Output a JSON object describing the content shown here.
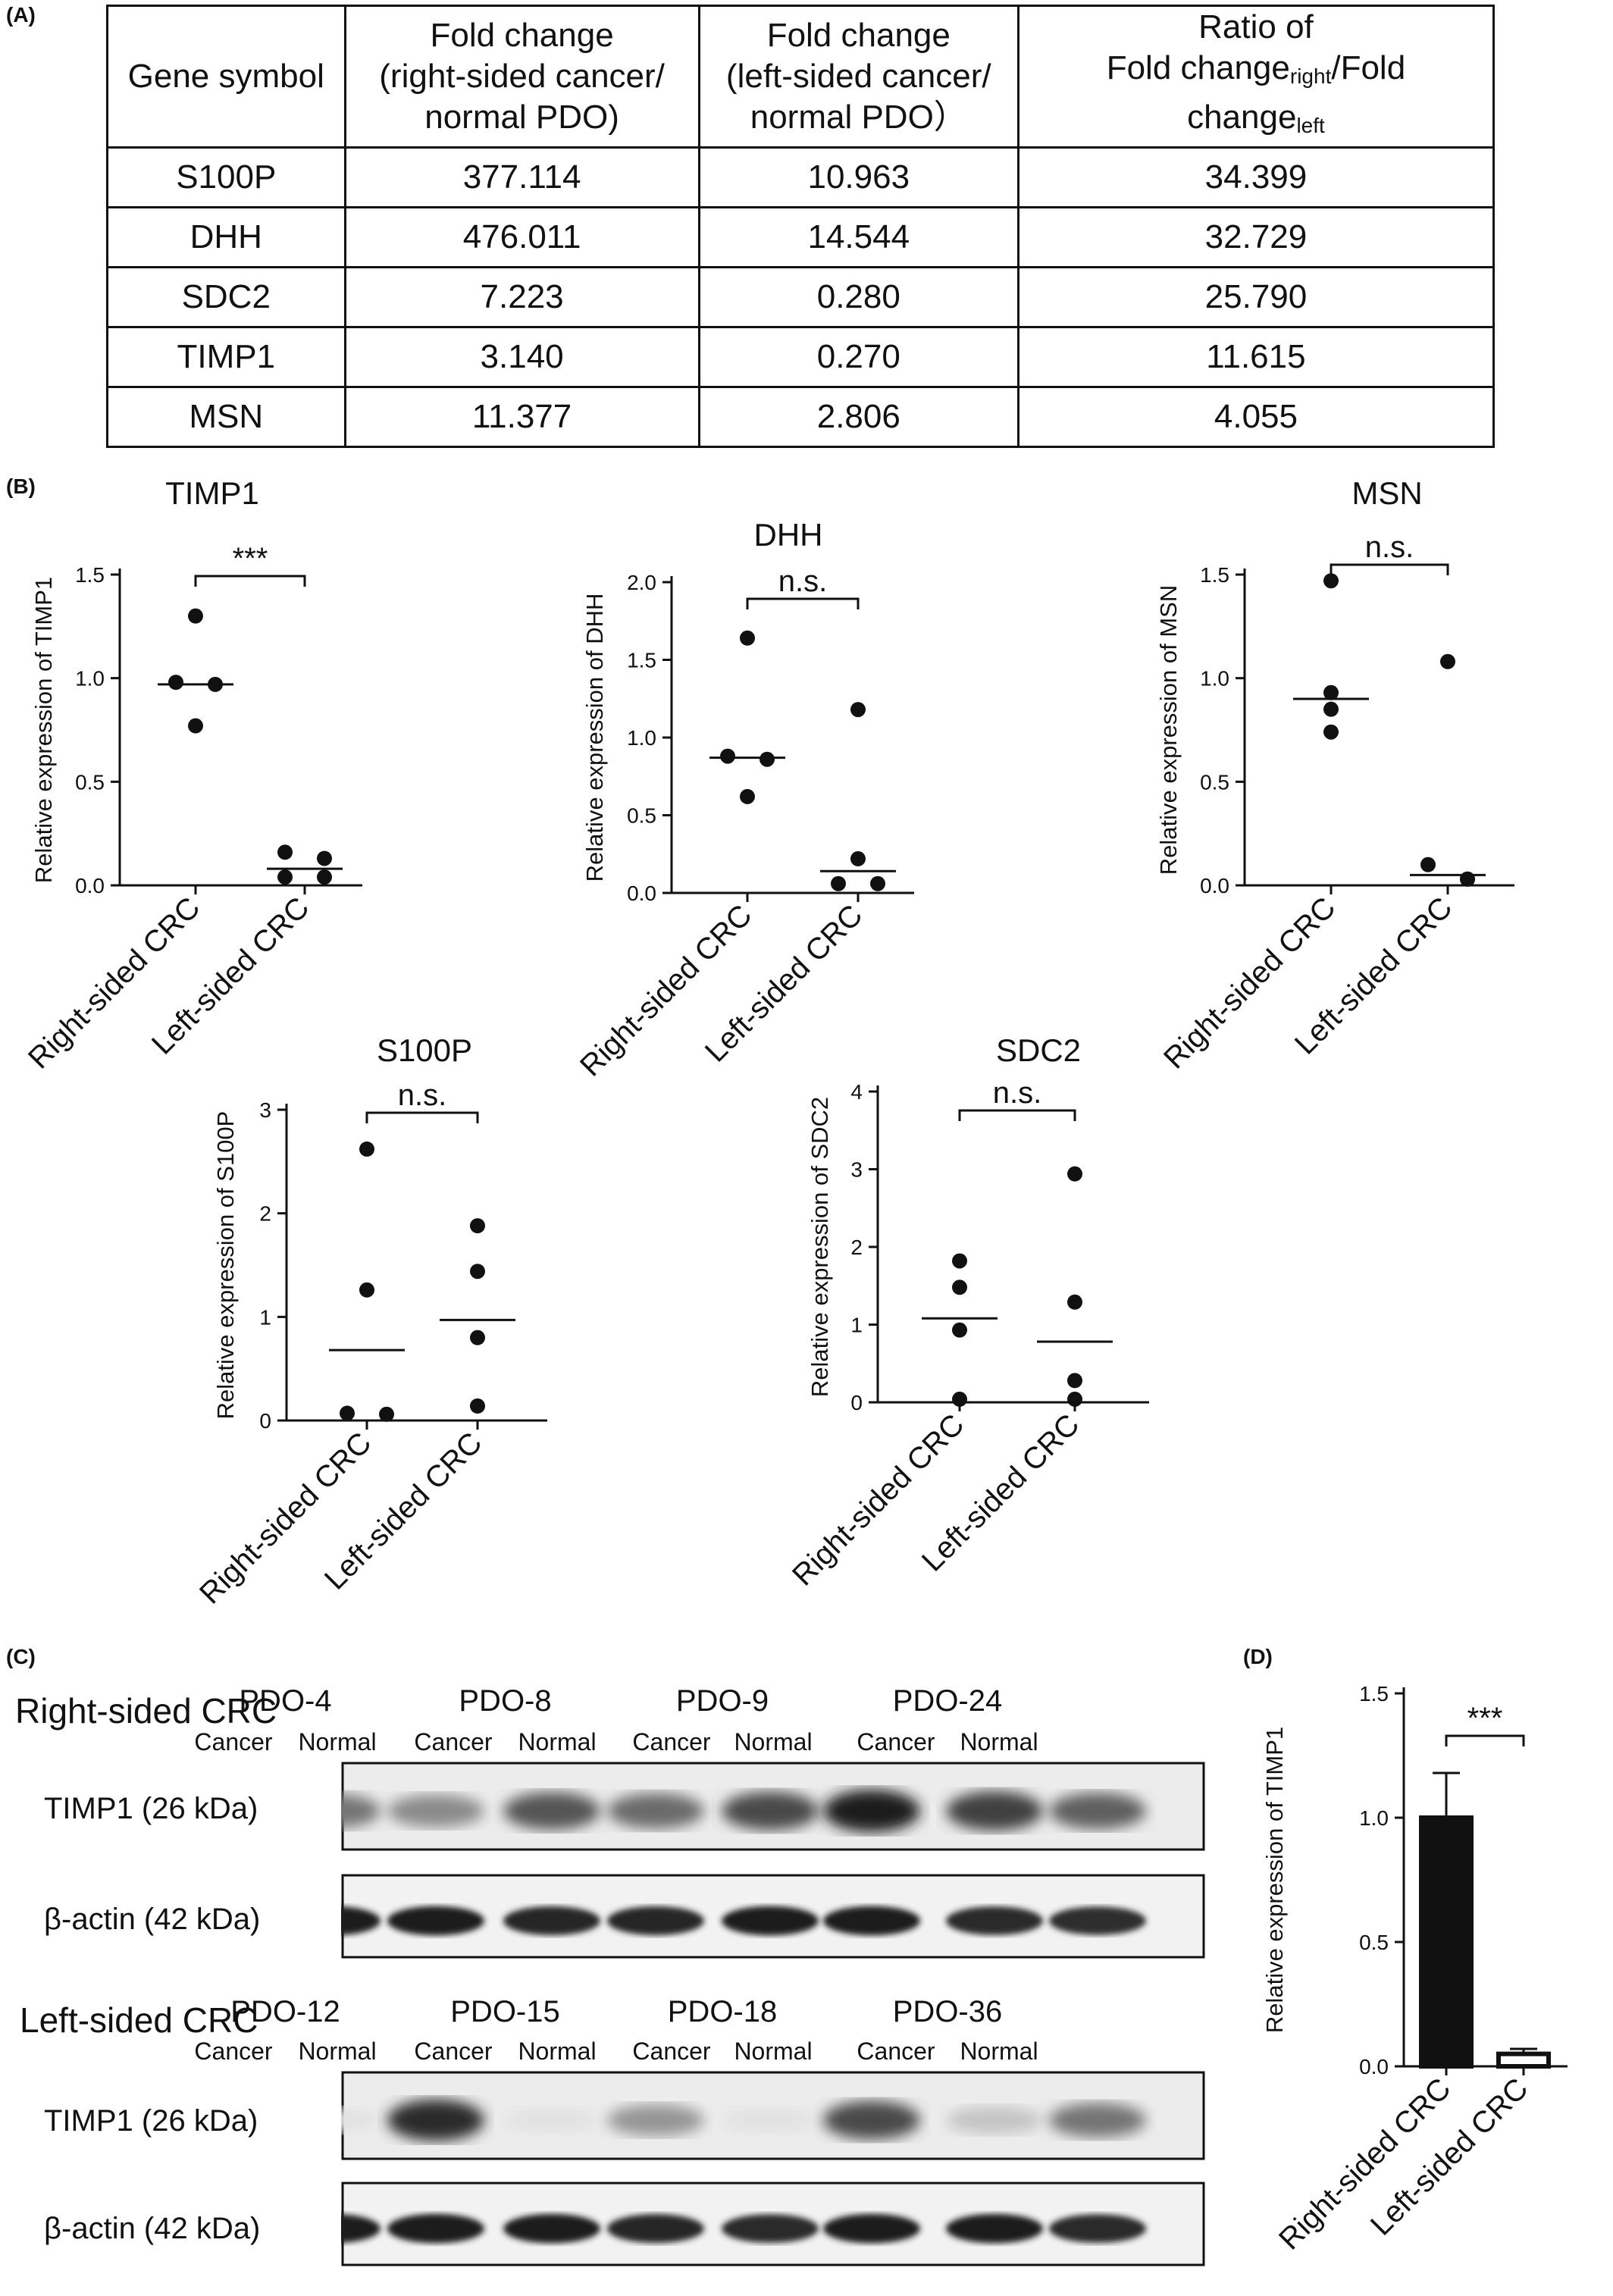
{
  "panel_labels": {
    "a": "(A)",
    "b": "(B)",
    "c": "(C)",
    "d": "(D)"
  },
  "table": {
    "headers": [
      [
        "Gene symbol"
      ],
      [
        "Fold change",
        "(right-sided cancer/",
        "normal PDO)"
      ],
      [
        "Fold change",
        "(left-sided cancer/",
        "normal PDO）"
      ],
      [
        "Ratio of",
        "Fold change",
        "right",
        "/Fold",
        "change",
        "left"
      ]
    ],
    "rows": [
      [
        "S100P",
        "377.114",
        "10.963",
        "34.399"
      ],
      [
        "DHH",
        "476.011",
        "14.544",
        "32.729"
      ],
      [
        "SDC2",
        "7.223",
        "0.280",
        "25.790"
      ],
      [
        "TIMP1",
        "3.140",
        "0.270",
        "11.615"
      ],
      [
        "MSN",
        "11.377",
        "2.806",
        "4.055"
      ]
    ]
  },
  "chart_data": [
    {
      "type": "scatter",
      "title": "TIMP1",
      "ylabel": "Relative expression of TIMP1",
      "categories": [
        "Right-sided CRC",
        "Left-sided CRC"
      ],
      "yticks": [
        "0.0",
        "0.5",
        "1.0",
        "1.5"
      ],
      "ylim": [
        0,
        1.5
      ],
      "points": [
        [
          1.3,
          0.98,
          0.97,
          0.77
        ],
        [
          0.16,
          0.13,
          0.04,
          0.04
        ]
      ],
      "means": [
        0.97,
        0.08
      ],
      "significance": "***"
    },
    {
      "type": "scatter",
      "title": "DHH",
      "ylabel": "Relative expression of DHH",
      "categories": [
        "Right-sided CRC",
        "Left-sided CRC"
      ],
      "yticks": [
        "0.0",
        "0.5",
        "1.0",
        "1.5",
        "2.0"
      ],
      "ylim": [
        0,
        2.0
      ],
      "points": [
        [
          1.64,
          0.88,
          0.86,
          0.62
        ],
        [
          1.18,
          0.22,
          0.06,
          0.06
        ]
      ],
      "means": [
        0.87,
        0.14
      ],
      "significance": "n.s."
    },
    {
      "type": "scatter",
      "title": "MSN",
      "ylabel": "Relative expression of MSN",
      "categories": [
        "Right-sided CRC",
        "Left-sided CRC"
      ],
      "yticks": [
        "0.0",
        "0.5",
        "1.0",
        "1.5"
      ],
      "ylim": [
        0,
        1.5
      ],
      "points": [
        [
          1.47,
          0.93,
          0.85,
          0.74
        ],
        [
          1.08,
          0.1,
          0.03,
          0.03
        ]
      ],
      "means": [
        0.9,
        0.05
      ],
      "significance": "n.s."
    },
    {
      "type": "scatter",
      "title": "S100P",
      "ylabel": "Relative expression of S100P",
      "categories": [
        "Right-sided CRC",
        "Left-sided CRC"
      ],
      "yticks": [
        "0",
        "1",
        "2",
        "3"
      ],
      "ylim": [
        0,
        3
      ],
      "points": [
        [
          2.62,
          1.26,
          0.07,
          0.06
        ],
        [
          1.88,
          1.44,
          0.8,
          0.14
        ]
      ],
      "means": [
        0.68,
        0.97
      ],
      "significance": "n.s."
    },
    {
      "type": "scatter",
      "title": "SDC2",
      "ylabel": "Relative expression of SDC2",
      "categories": [
        "Right-sided CRC",
        "Left-sided CRC"
      ],
      "yticks": [
        "0",
        "1",
        "2",
        "3",
        "4"
      ],
      "ylim": [
        0,
        4
      ],
      "points": [
        [
          1.82,
          1.48,
          0.93,
          0.04
        ],
        [
          2.94,
          1.29,
          0.28,
          0.04
        ]
      ],
      "means": [
        1.08,
        0.78
      ],
      "significance": "n.s."
    },
    {
      "type": "bar",
      "title": "",
      "ylabel": "Relative expression of TIMP1",
      "categories": [
        "Right-sided CRC",
        "Left-sided CRC"
      ],
      "yticks": [
        "0.0",
        "0.5",
        "1.0",
        "1.5"
      ],
      "ylim": [
        0,
        1.5
      ],
      "values": [
        1.0,
        0.05
      ],
      "errors": [
        0.18,
        0.02
      ],
      "significance": "***"
    }
  ],
  "western": {
    "right": {
      "group_label": "Right-sided CRC",
      "pdos": [
        "PDO-4",
        "PDO-8",
        "PDO-9",
        "PDO-24"
      ],
      "timp1_intensity": [
        0.55,
        0.45,
        0.7,
        0.6,
        0.75,
        0.95,
        0.8,
        0.65
      ],
      "actin_intensity": [
        0.95,
        0.95,
        0.92,
        0.92,
        0.95,
        0.95,
        0.9,
        0.88
      ]
    },
    "left": {
      "group_label": "Left-sided CRC",
      "pdos": [
        "PDO-12",
        "PDO-15",
        "PDO-18",
        "PDO-36"
      ],
      "timp1_intensity": [
        0.04,
        0.9,
        0.04,
        0.4,
        0.04,
        0.75,
        0.18,
        0.55
      ],
      "actin_intensity": [
        0.95,
        0.95,
        0.95,
        0.92,
        0.9,
        0.95,
        0.95,
        0.9
      ]
    },
    "lanes": [
      "Cancer",
      "Normal"
    ],
    "timp1_label": "TIMP1 (26 kDa)",
    "actin_label": "β-actin (42 kDa)"
  }
}
